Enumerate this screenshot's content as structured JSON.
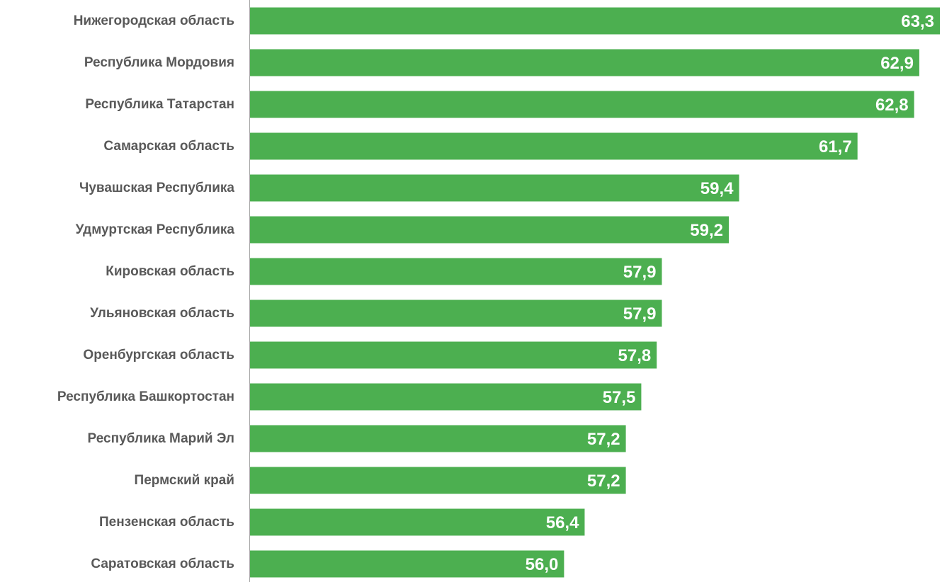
{
  "chart_data": {
    "type": "bar",
    "orientation": "horizontal",
    "categories": [
      "Нижегородская область",
      "Республика Мордовия",
      "Республика Татарстан",
      "Самарская область",
      "Чувашская Республика",
      "Удмуртская Республика",
      "Кировская область",
      "Ульяновская область",
      "Оренбургская область",
      "Республика Башкортостан",
      "Республика Марий Эл",
      "Пермский край",
      "Пензенская область",
      "Саратовская область"
    ],
    "values": [
      63.3,
      62.9,
      62.8,
      61.7,
      59.4,
      59.2,
      57.9,
      57.9,
      57.8,
      57.5,
      57.2,
      57.2,
      56.4,
      56.0
    ],
    "value_labels": [
      "63,3",
      "62,9",
      "62,8",
      "61,7",
      "59,4",
      "59,2",
      "57,9",
      "57,9",
      "57,8",
      "57,5",
      "57,2",
      "57,2",
      "56,4",
      "56,0"
    ],
    "xlim": [
      49.9,
      63.3
    ],
    "grid": false,
    "legend": "none",
    "bar_color": "#4caf50",
    "axis_color": "#a6a6a6",
    "label_color": "#595959",
    "value_label_color": "#ffffff"
  }
}
